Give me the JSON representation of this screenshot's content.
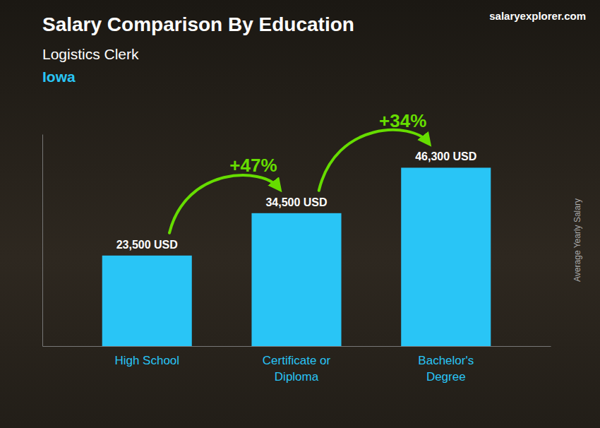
{
  "chart_data": {
    "type": "bar",
    "title": "Salary Comparison By Education",
    "subtitle": [
      "Logistics Clerk",
      "Iowa"
    ],
    "source": "salaryexplorer.com",
    "ylabel": "Average Yearly Salary",
    "categories": [
      "High School",
      "Certificate or\nDiploma",
      "Bachelor's\nDegree"
    ],
    "values": [
      23500,
      34500,
      46300
    ],
    "value_labels": [
      "23,500 USD",
      "34,500 USD",
      "46,300 USD"
    ],
    "data_labels": true,
    "color": "#29c5f6",
    "ylim": [
      0,
      55000
    ],
    "tick_labels": false,
    "annotations": [
      {
        "text": "+47%",
        "color": "#66dd00"
      },
      {
        "text": "+34%",
        "color": "#66dd00"
      }
    ]
  }
}
